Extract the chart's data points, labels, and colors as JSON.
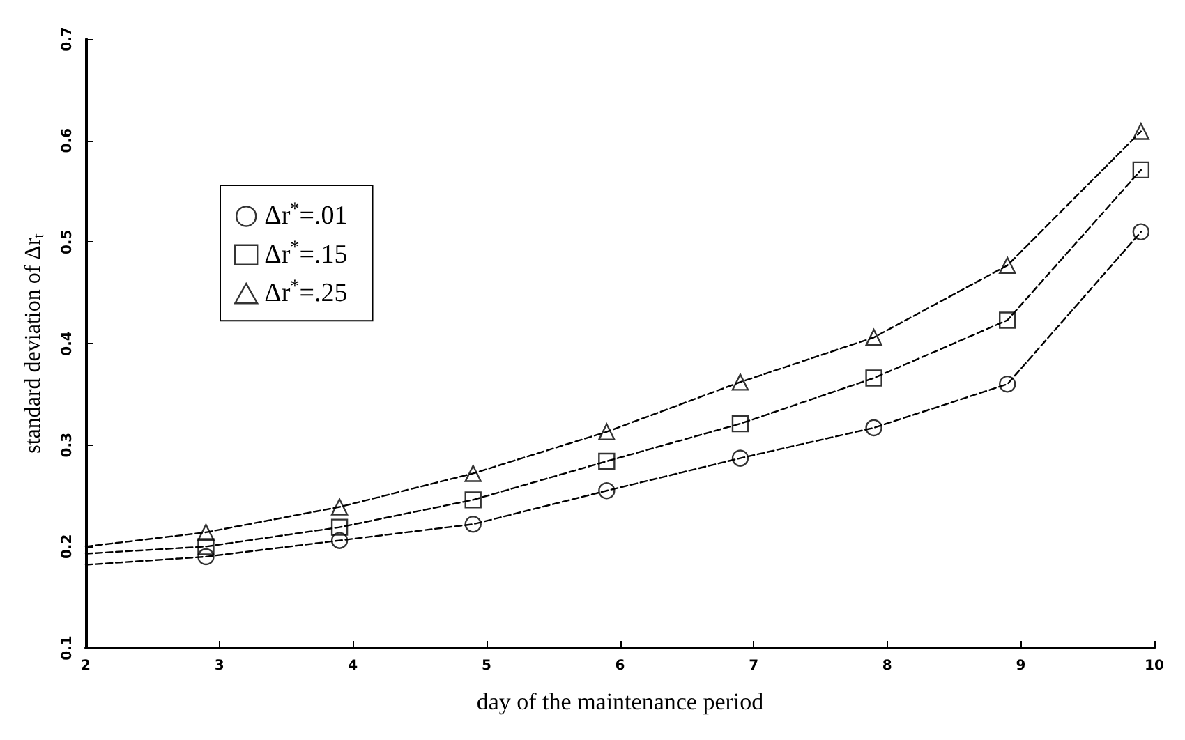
{
  "chart_data": {
    "type": "line",
    "xlabel": "day of the maintenance period",
    "ylabel": "standard deviation of Δr$_{t}$",
    "xlim": [
      2,
      10
    ],
    "xticks": [
      2,
      3,
      4,
      5,
      6,
      7,
      8,
      9,
      10
    ],
    "ylim": [
      0.1,
      0.7
    ],
    "yticks": [
      0.1,
      0.2,
      0.3,
      0.4,
      0.5,
      0.6,
      0.7
    ],
    "grid": false,
    "legend": "top left",
    "series": [
      {
        "color": "#000000",
        "marker": "none",
        "line_style": "dashed",
        "x": [
          2,
          2.9,
          3.9,
          4.9,
          5.9,
          6.9,
          7.9,
          8.9,
          9.9
        ],
        "values": [
          0.182,
          0.19,
          0.206,
          0.222,
          0.255,
          0.287,
          0.317,
          0.36,
          0.51
        ]
      },
      {
        "color": "#000000",
        "marker": "none",
        "line_style": "dashed",
        "x": [
          2,
          2.9,
          3.9,
          4.9,
          5.9,
          6.9,
          7.9,
          8.9,
          9.9
        ],
        "values": [
          0.193,
          0.2,
          0.219,
          0.246,
          0.284,
          0.321,
          0.366,
          0.423,
          0.571
        ]
      },
      {
        "color": "#000000",
        "marker": "none",
        "line_style": "dashed",
        "x": [
          2,
          2.9,
          3.9,
          4.9,
          5.9,
          6.9,
          7.9,
          8.9,
          9.9
        ],
        "values": [
          0.2,
          0.214,
          0.239,
          0.272,
          0.313,
          0.362,
          0.406,
          0.477,
          0.609
        ]
      },
      {
        "type": "scatter",
        "name": "Δr$^{*}$=.01",
        "color": "#000000",
        "marker": "circle",
        "x": [
          2.9,
          3.9,
          4.9,
          5.9,
          6.9,
          7.9,
          8.9,
          9.9
        ],
        "values": [
          0.19,
          0.206,
          0.222,
          0.255,
          0.287,
          0.317,
          0.36,
          0.51
        ]
      },
      {
        "type": "scatter",
        "name": "Δr$^{*}$=.15",
        "color": "#000000",
        "marker": "square",
        "x": [
          2.9,
          3.9,
          4.9,
          5.9,
          6.9,
          7.9,
          8.9,
          9.9
        ],
        "values": [
          0.2,
          0.219,
          0.246,
          0.284,
          0.321,
          0.366,
          0.423,
          0.571
        ]
      },
      {
        "type": "scatter",
        "name": "Δr$^{*}$=.25",
        "color": "#000000",
        "marker": "triangle",
        "x": [
          2.9,
          3.9,
          4.9,
          5.9,
          6.9,
          7.9,
          8.9,
          9.9
        ],
        "values": [
          0.214,
          0.239,
          0.272,
          0.313,
          0.362,
          0.406,
          0.477,
          0.609
        ]
      }
    ]
  }
}
